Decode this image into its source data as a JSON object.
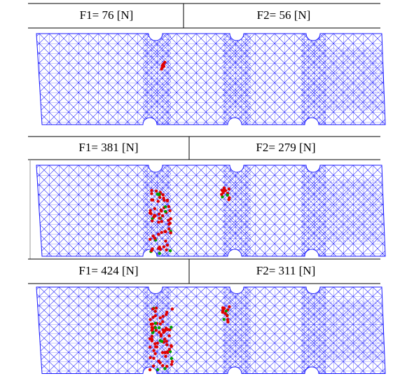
{
  "rows": [
    {
      "f1": "F1= 76 [N]",
      "f2": "F2= 56 [N]"
    },
    {
      "f1": "F1= 381 [N]",
      "f2": "F2= 279 [N]"
    },
    {
      "f1": "F1= 424 [N]",
      "f2": "F2= 311 [N]"
    }
  ]
}
